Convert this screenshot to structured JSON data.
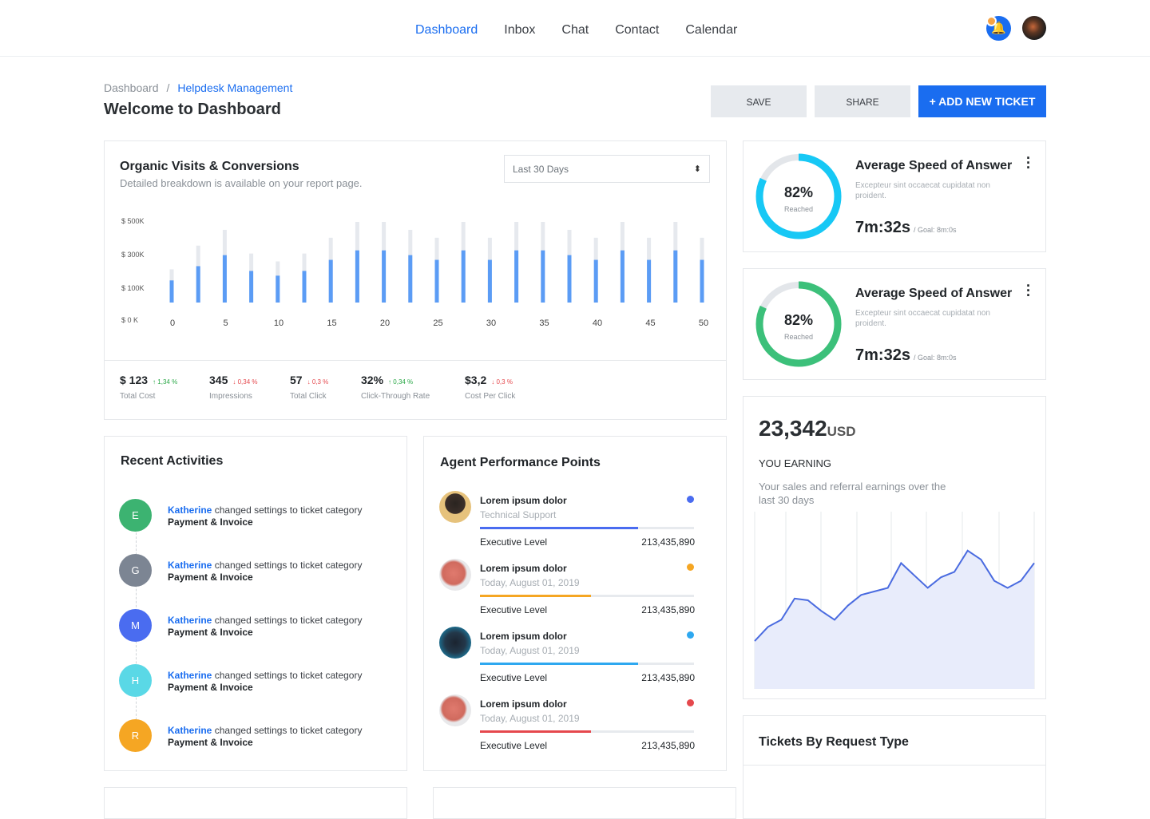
{
  "nav": {
    "items": [
      "Dashboard",
      "Inbox",
      "Chat",
      "Contact",
      "Calendar"
    ],
    "active": "Dashboard"
  },
  "breadcrumb": {
    "root": "Dashboard",
    "separator": "/",
    "current": "Helpdesk Management"
  },
  "page_title": "Welcome to Dashboard",
  "buttons": {
    "save": "SAVE",
    "share": "SHARE",
    "add": "+ ADD NEW TICKET"
  },
  "colors": {
    "accent": "#1a6df0",
    "bar": "#5b9cf5",
    "bar_bg": "#e6e9ee",
    "cyan": "#17c8f5",
    "green": "#3cc07a",
    "line": "#4a6be0"
  },
  "organic": {
    "title": "Organic Visits & Conversions",
    "subtitle": "Detailed breakdown is available on your report page.",
    "range": "Last 30 Days",
    "stats": [
      {
        "value": "$ 123",
        "delta": "1,34 %",
        "dir": "up",
        "label": "Total Cost"
      },
      {
        "value": "345",
        "delta": "0,34 %",
        "dir": "down",
        "label": "Impressions"
      },
      {
        "value": "57",
        "delta": "0,3 %",
        "dir": "down",
        "label": "Total Click"
      },
      {
        "value": "32%",
        "delta": "0,34 %",
        "dir": "up",
        "label": "Click-Through Rate"
      },
      {
        "value": "$3,2",
        "delta": "0,3 %",
        "dir": "down",
        "label": "Cost Per Click"
      }
    ]
  },
  "chart_data": [
    {
      "type": "bar",
      "yticks": [
        "$ 500K",
        "$ 300K",
        "$ 100K",
        "$ 0 K"
      ],
      "xticks": [
        "0",
        "5",
        "10",
        "15",
        "20",
        "25",
        "30",
        "35",
        "40",
        "45",
        "50"
      ],
      "series": [
        {
          "values": [
            140,
            230,
            300,
            200,
            170,
            200,
            270,
            330,
            330,
            300,
            270,
            330,
            270,
            330,
            330,
            300,
            270,
            330,
            270,
            330,
            270
          ]
        },
        {
          "values": [
            210,
            360,
            460,
            310,
            260,
            310,
            410,
            510,
            510,
            460,
            410,
            510,
            410,
            510,
            510,
            460,
            410,
            510,
            410,
            510,
            410
          ]
        }
      ],
      "ylim": [
        0,
        500
      ],
      "grid": false
    },
    {
      "type": "area",
      "values": [
        27,
        35,
        39,
        51,
        50,
        44,
        39,
        47,
        53,
        55,
        57,
        71,
        64,
        57,
        63,
        66,
        78,
        73,
        61,
        57,
        61,
        71
      ],
      "ylim": [
        0,
        100
      ],
      "grid": true
    }
  ],
  "asa": [
    {
      "percent": "82%",
      "fraction": 0.82,
      "reached": "Reached",
      "title": "Average Speed of Answer",
      "desc": "Excepteur sint occaecat cupidatat non proident.",
      "time": "7m:32s",
      "goal": "/ Goal: 8m:0s",
      "color": "#17c8f5"
    },
    {
      "percent": "82%",
      "fraction": 0.82,
      "reached": "Reached",
      "title": "Average Speed of Answer",
      "desc": "Excepteur sint occaecat cupidatat non proident.",
      "time": "7m:32s",
      "goal": "/ Goal: 8m:0s",
      "color": "#3cc07a"
    }
  ],
  "earning": {
    "amount": "23,342",
    "currency": "USD",
    "label": "YOU EARNING",
    "desc": "Your sales and referral earnings over the last 30 days"
  },
  "tickets": {
    "title": "Tickets By Request Type"
  },
  "activities": {
    "title": "Recent Activities",
    "items": [
      {
        "initial": "E",
        "color": "#3cb371",
        "user": "Katherine",
        "action": "changed settings to ticket category",
        "target": "Payment & Invoice"
      },
      {
        "initial": "G",
        "color": "#7c8593",
        "user": "Katherine",
        "action": "changed settings to ticket category",
        "target": "Payment & Invoice"
      },
      {
        "initial": "M",
        "color": "#4a6cf0",
        "user": "Katherine",
        "action": "changed settings to ticket category",
        "target": "Payment & Invoice"
      },
      {
        "initial": "H",
        "color": "#5ad8e6",
        "user": "Katherine",
        "action": "changed settings to ticket category",
        "target": "Payment & Invoice"
      },
      {
        "initial": "R",
        "color": "#f5a623",
        "user": "Katherine",
        "action": "changed settings to ticket category",
        "target": "Payment & Invoice"
      }
    ]
  },
  "agents": {
    "title": "Agent Performance Points",
    "items": [
      {
        "name": "Lorem ipsum dolor",
        "sub": "Technical Support",
        "level": "Executive Level",
        "points": "213,435,890",
        "progress": 0.74,
        "color": "#4a6cf0"
      },
      {
        "name": "Lorem ipsum dolor",
        "sub": "Today, August 01, 2019",
        "level": "Executive Level",
        "points": "213,435,890",
        "progress": 0.52,
        "color": "#f5a623"
      },
      {
        "name": "Lorem ipsum dolor",
        "sub": "Today, August 01, 2019",
        "level": "Executive Level",
        "points": "213,435,890",
        "progress": 0.74,
        "color": "#2ea8f0"
      },
      {
        "name": "Lorem ipsum dolor",
        "sub": "Today, August 01, 2019",
        "level": "Executive Level",
        "points": "213,435,890",
        "progress": 0.52,
        "color": "#e5484d"
      }
    ]
  }
}
